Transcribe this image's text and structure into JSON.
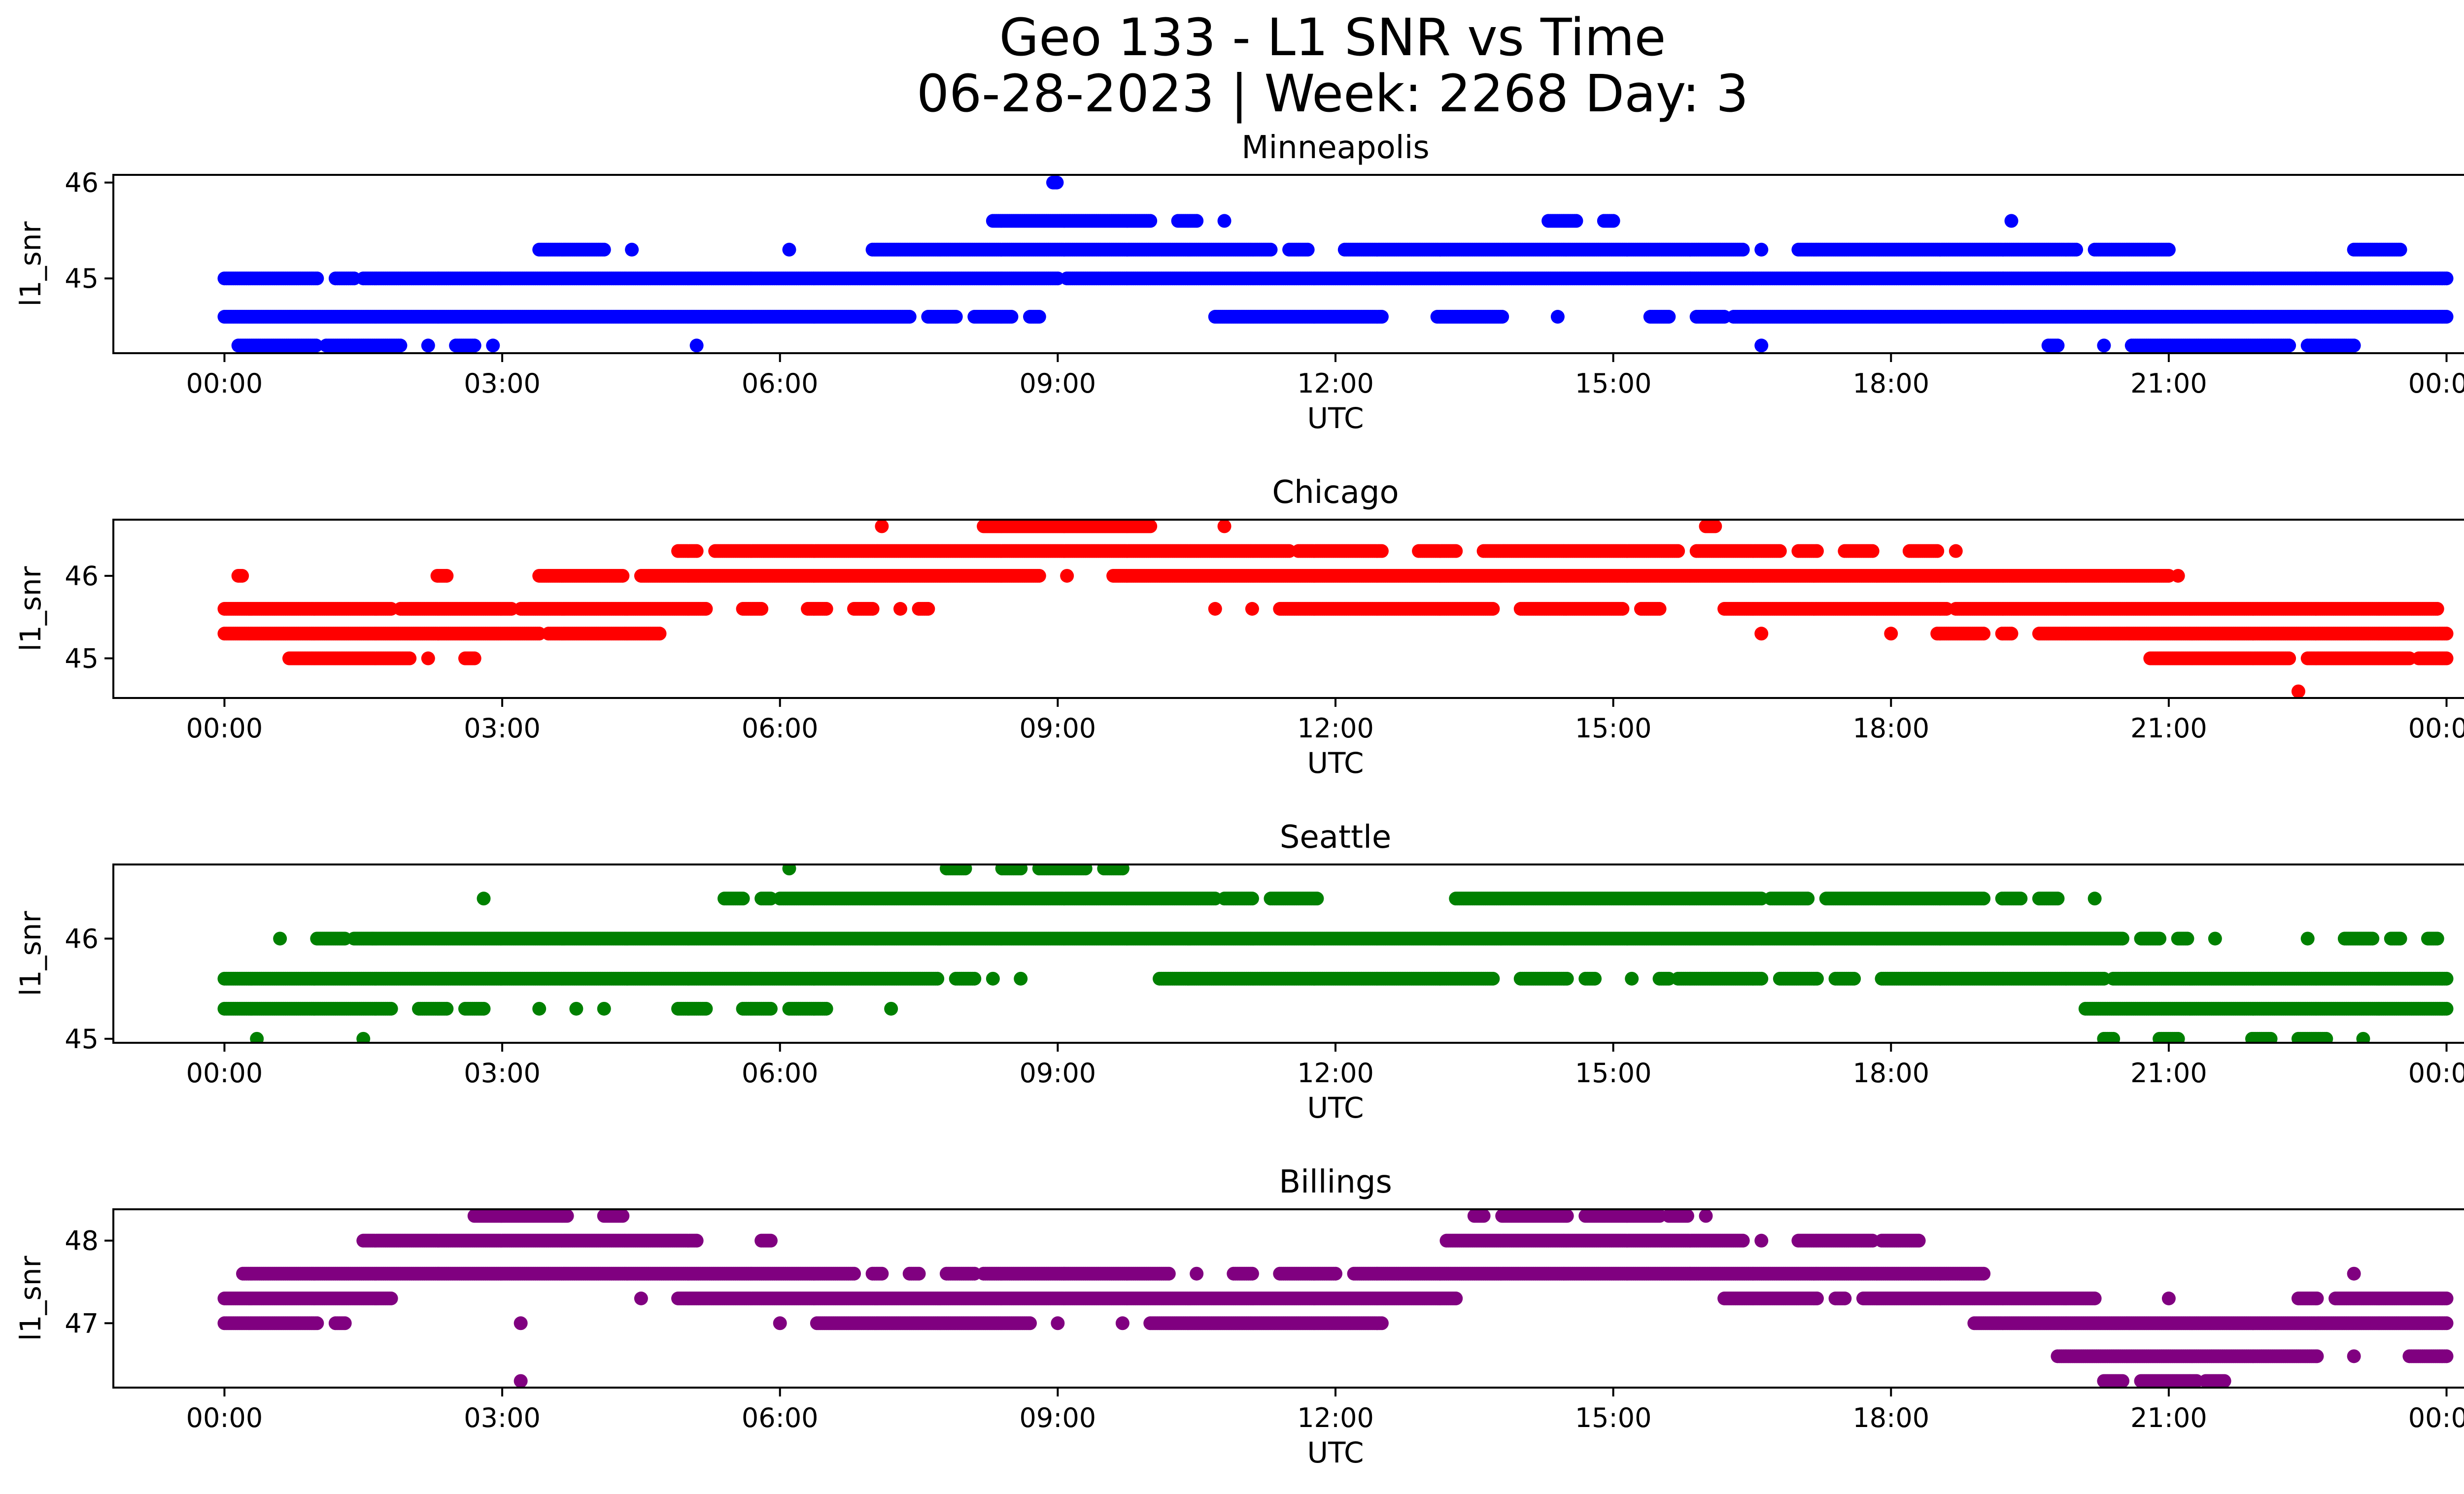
{
  "chart_data": {
    "type": "scatter",
    "title": "Geo 133 - L1 SNR vs Time",
    "subtitle": "06-28-2023 | Week: 2268 Day: 3",
    "xlabel": "UTC",
    "ylabel": "l1_snr",
    "x_ticks": [
      "00:00",
      "03:00",
      "06:00",
      "09:00",
      "12:00",
      "15:00",
      "18:00",
      "21:00",
      "00:00"
    ],
    "x_range_hours": [
      -1.2,
      25.2
    ],
    "panels": [
      {
        "title": "Minneapolis",
        "color": "#0000ff",
        "ylim": [
          44.22,
          46.08
        ],
        "yticks": [
          45,
          46
        ],
        "points": [
          {
            "y": 46.0,
            "spans": [
              [
                8.95,
                9.0
              ]
            ]
          },
          {
            "y": 45.6,
            "spans": [
              [
                8.3,
                10.0
              ],
              [
                10.3,
                10.5
              ],
              [
                10.8,
                10.8
              ],
              [
                14.3,
                14.6
              ],
              [
                14.9,
                15.0
              ],
              [
                19.3,
                19.3
              ]
            ]
          },
          {
            "y": 45.3,
            "spans": [
              [
                3.4,
                4.1
              ],
              [
                4.4,
                4.4
              ],
              [
                6.1,
                6.1
              ],
              [
                7.0,
                11.3
              ],
              [
                11.5,
                11.7
              ],
              [
                12.1,
                16.4
              ],
              [
                16.6,
                16.6
              ],
              [
                17.0,
                20.0
              ],
              [
                20.2,
                21.0
              ],
              [
                23.0,
                23.5
              ]
            ]
          },
          {
            "y": 45.0,
            "spans": [
              [
                0.0,
                1.0
              ],
              [
                1.2,
                1.4
              ],
              [
                1.5,
                9.0
              ],
              [
                9.1,
                24.0
              ]
            ]
          },
          {
            "y": 44.6,
            "spans": [
              [
                0.0,
                7.4
              ],
              [
                7.6,
                7.9
              ],
              [
                8.1,
                8.5
              ],
              [
                8.7,
                8.8
              ],
              [
                10.7,
                12.5
              ],
              [
                13.1,
                13.8
              ],
              [
                14.4,
                14.4
              ],
              [
                15.4,
                15.6
              ],
              [
                15.9,
                16.2
              ],
              [
                16.3,
                24.0
              ]
            ]
          },
          {
            "y": 44.3,
            "spans": [
              [
                0.15,
                1.0
              ],
              [
                1.1,
                1.9
              ],
              [
                2.2,
                2.2
              ],
              [
                2.5,
                2.7
              ],
              [
                2.9,
                2.9
              ],
              [
                5.1,
                5.1
              ],
              [
                16.6,
                16.6
              ],
              [
                19.7,
                19.8
              ],
              [
                20.3,
                20.3
              ],
              [
                20.6,
                22.3
              ],
              [
                22.5,
                23.0
              ]
            ]
          }
        ]
      },
      {
        "title": "Chicago",
        "color": "#ff0000",
        "ylim": [
          44.52,
          46.68
        ],
        "yticks": [
          45,
          46
        ],
        "points": [
          {
            "y": 46.6,
            "spans": [
              [
                7.1,
                7.1
              ],
              [
                8.2,
                10.0
              ],
              [
                10.8,
                10.8
              ],
              [
                16.0,
                16.1
              ]
            ]
          },
          {
            "y": 46.3,
            "spans": [
              [
                4.9,
                5.1
              ],
              [
                5.3,
                11.5
              ],
              [
                11.6,
                12.5
              ],
              [
                12.9,
                13.3
              ],
              [
                13.6,
                15.7
              ],
              [
                15.9,
                16.8
              ],
              [
                17.0,
                17.2
              ],
              [
                17.5,
                17.8
              ],
              [
                18.2,
                18.5
              ],
              [
                18.7,
                18.7
              ]
            ]
          },
          {
            "y": 46.0,
            "spans": [
              [
                0.15,
                0.2
              ],
              [
                2.3,
                2.4
              ],
              [
                3.4,
                4.3
              ],
              [
                4.5,
                8.8
              ],
              [
                9.1,
                9.1
              ],
              [
                9.6,
                21.0
              ],
              [
                21.1,
                21.1
              ]
            ]
          },
          {
            "y": 45.6,
            "spans": [
              [
                0.0,
                1.8
              ],
              [
                1.9,
                3.1
              ],
              [
                3.2,
                5.2
              ],
              [
                5.6,
                5.8
              ],
              [
                6.3,
                6.5
              ],
              [
                6.8,
                7.0
              ],
              [
                7.3,
                7.3
              ],
              [
                7.5,
                7.6
              ],
              [
                10.7,
                10.7
              ],
              [
                11.1,
                11.1
              ],
              [
                11.4,
                13.7
              ],
              [
                14.0,
                15.1
              ],
              [
                15.3,
                15.5
              ],
              [
                16.2,
                18.6
              ],
              [
                18.7,
                23.9
              ]
            ]
          },
          {
            "y": 45.3,
            "spans": [
              [
                0.0,
                3.4
              ],
              [
                3.5,
                4.7
              ],
              [
                16.6,
                16.6
              ],
              [
                18.0,
                18.0
              ],
              [
                18.5,
                19.0
              ],
              [
                19.2,
                19.3
              ],
              [
                19.6,
                24.0
              ]
            ]
          },
          {
            "y": 45.0,
            "spans": [
              [
                0.7,
                2.0
              ],
              [
                2.2,
                2.2
              ],
              [
                2.6,
                2.7
              ],
              [
                20.8,
                22.3
              ],
              [
                22.5,
                23.6
              ],
              [
                23.7,
                24.0
              ]
            ]
          },
          {
            "y": 44.6,
            "spans": [
              [
                22.4,
                22.4
              ]
            ]
          }
        ]
      },
      {
        "title": "Seattle",
        "color": "#008000",
        "ylim": [
          44.96,
          46.74
        ],
        "yticks": [
          45,
          46
        ],
        "points": [
          {
            "y": 46.7,
            "spans": [
              [
                6.1,
                6.1
              ],
              [
                7.8,
                8.0
              ],
              [
                8.4,
                8.6
              ],
              [
                8.8,
                9.3
              ],
              [
                9.5,
                9.7
              ]
            ]
          },
          {
            "y": 46.4,
            "spans": [
              [
                2.8,
                2.8
              ],
              [
                5.4,
                5.6
              ],
              [
                5.8,
                5.9
              ],
              [
                6.0,
                10.7
              ],
              [
                10.8,
                11.1
              ],
              [
                11.3,
                11.8
              ],
              [
                13.3,
                16.6
              ],
              [
                16.7,
                17.1
              ],
              [
                17.3,
                19.0
              ],
              [
                19.2,
                19.4
              ],
              [
                19.6,
                19.8
              ],
              [
                20.2,
                20.2
              ]
            ]
          },
          {
            "y": 46.0,
            "spans": [
              [
                0.6,
                0.6
              ],
              [
                1.0,
                1.3
              ],
              [
                1.4,
                1.6
              ],
              [
                1.6,
                20.5
              ],
              [
                20.7,
                20.9
              ],
              [
                21.1,
                21.2
              ],
              [
                21.5,
                21.5
              ],
              [
                22.5,
                22.5
              ],
              [
                22.9,
                23.2
              ],
              [
                23.4,
                23.5
              ],
              [
                23.8,
                23.9
              ]
            ]
          },
          {
            "y": 45.6,
            "spans": [
              [
                0.0,
                7.7
              ],
              [
                7.9,
                8.1
              ],
              [
                8.3,
                8.3
              ],
              [
                8.6,
                8.6
              ],
              [
                10.1,
                13.7
              ],
              [
                14.0,
                14.5
              ],
              [
                14.7,
                14.8
              ],
              [
                15.2,
                15.2
              ],
              [
                15.5,
                15.6
              ],
              [
                15.7,
                16.6
              ],
              [
                16.8,
                17.2
              ],
              [
                17.4,
                17.6
              ],
              [
                17.9,
                20.3
              ],
              [
                20.4,
                24.0
              ]
            ]
          },
          {
            "y": 45.3,
            "spans": [
              [
                0.0,
                1.8
              ],
              [
                2.1,
                2.4
              ],
              [
                2.6,
                2.8
              ],
              [
                3.4,
                3.4
              ],
              [
                3.8,
                3.8
              ],
              [
                4.1,
                4.1
              ],
              [
                4.9,
                5.2
              ],
              [
                5.6,
                5.9
              ],
              [
                6.1,
                6.5
              ],
              [
                7.2,
                7.2
              ],
              [
                20.1,
                24.0
              ]
            ]
          },
          {
            "y": 45.0,
            "spans": [
              [
                0.35,
                0.35
              ],
              [
                1.5,
                1.5
              ],
              [
                20.3,
                20.4
              ],
              [
                20.9,
                21.1
              ],
              [
                21.9,
                22.1
              ],
              [
                22.4,
                22.7
              ],
              [
                23.1,
                23.1
              ]
            ]
          }
        ]
      },
      {
        "title": "Billings",
        "color": "#800080",
        "ylim": [
          46.22,
          48.38
        ],
        "yticks": [
          47,
          48
        ],
        "points": [
          {
            "y": 48.3,
            "spans": [
              [
                2.7,
                3.7
              ],
              [
                4.1,
                4.3
              ],
              [
                13.5,
                13.6
              ],
              [
                13.8,
                14.5
              ],
              [
                14.7,
                15.5
              ],
              [
                15.6,
                15.8
              ],
              [
                16.0,
                16.0
              ]
            ]
          },
          {
            "y": 48.0,
            "spans": [
              [
                1.5,
                5.1
              ],
              [
                5.8,
                5.9
              ],
              [
                13.2,
                16.4
              ],
              [
                16.6,
                16.6
              ],
              [
                17.0,
                17.8
              ],
              [
                17.9,
                18.3
              ]
            ]
          },
          {
            "y": 47.6,
            "spans": [
              [
                0.2,
                6.8
              ],
              [
                7.0,
                7.1
              ],
              [
                7.4,
                7.5
              ],
              [
                7.8,
                8.1
              ],
              [
                8.2,
                10.2
              ],
              [
                10.5,
                10.5
              ],
              [
                10.9,
                11.1
              ],
              [
                11.4,
                12.0
              ],
              [
                12.2,
                19.0
              ],
              [
                23.0,
                23.0
              ]
            ]
          },
          {
            "y": 47.3,
            "spans": [
              [
                0.0,
                1.8
              ],
              [
                4.5,
                4.5
              ],
              [
                4.9,
                13.3
              ],
              [
                16.2,
                17.2
              ],
              [
                17.4,
                17.5
              ],
              [
                17.7,
                20.2
              ],
              [
                21.0,
                21.0
              ],
              [
                22.4,
                22.6
              ],
              [
                22.8,
                24.0
              ]
            ]
          },
          {
            "y": 47.0,
            "spans": [
              [
                0.0,
                1.0
              ],
              [
                1.2,
                1.3
              ],
              [
                3.2,
                3.2
              ],
              [
                6.0,
                6.0
              ],
              [
                6.4,
                8.7
              ],
              [
                9.0,
                9.0
              ],
              [
                9.7,
                9.7
              ],
              [
                10.0,
                12.5
              ],
              [
                18.9,
                24.0
              ]
            ]
          },
          {
            "y": 46.6,
            "spans": [
              [
                19.8,
                22.6
              ],
              [
                23.0,
                23.0
              ],
              [
                23.6,
                24.0
              ]
            ]
          },
          {
            "y": 46.3,
            "spans": [
              [
                3.2,
                3.2
              ],
              [
                20.3,
                20.5
              ],
              [
                20.7,
                21.3
              ],
              [
                21.4,
                21.6
              ]
            ]
          }
        ]
      }
    ]
  }
}
